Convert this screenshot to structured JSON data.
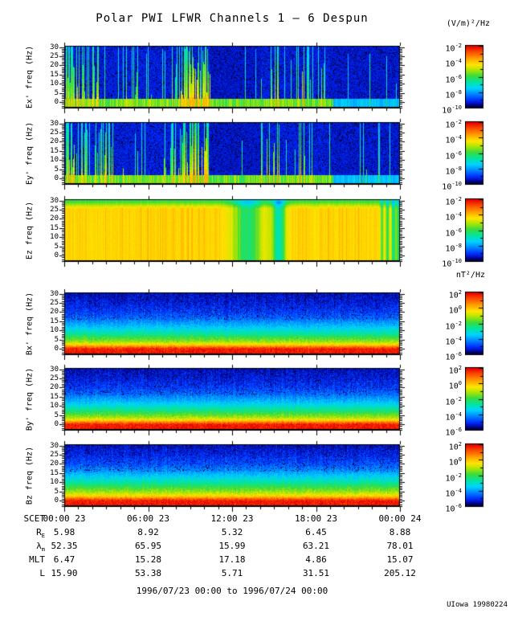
{
  "header": {
    "title": "Polar PWI LFWR Channels 1 — 6 Despun",
    "e_units": "(V/m)²/Hz",
    "b_units": "nT²/Hz"
  },
  "footer": {
    "date_range": "1996/07/23 00:00 to 1996/07/24 00:00",
    "credit": "UIowa 19980224"
  },
  "chart_data": {
    "type": "heatmap",
    "title": "Polar PWI LFWR Channels 1 — 6 Despun",
    "x_axis": {
      "label": "SCET",
      "tick_labels": [
        "00:00 23",
        "06:00 23",
        "12:00 23",
        "18:00 23",
        "00:00 24"
      ],
      "range_hours": [
        0,
        24
      ],
      "minor_tick_hours": 1
    },
    "y_axis": {
      "unit": "Hz",
      "tick_values": [
        0,
        5,
        10,
        15,
        20,
        25,
        30
      ],
      "range": [
        -3,
        33
      ]
    },
    "colormap_stops": [
      [
        0.0,
        0,
        0,
        10
      ],
      [
        0.04,
        0,
        0,
        120
      ],
      [
        0.12,
        0,
        40,
        255
      ],
      [
        0.22,
        0,
        130,
        255
      ],
      [
        0.32,
        0,
        210,
        255
      ],
      [
        0.42,
        0,
        230,
        160
      ],
      [
        0.52,
        60,
        220,
        60
      ],
      [
        0.62,
        180,
        230,
        0
      ],
      [
        0.7,
        255,
        230,
        0
      ],
      [
        0.8,
        255,
        160,
        0
      ],
      [
        0.9,
        255,
        80,
        0
      ],
      [
        1.0,
        230,
        0,
        0
      ]
    ],
    "colorbars": {
      "E": {
        "units": "(V/m)²/Hz",
        "labeled_exponents": [
          -2,
          -4,
          -6,
          -8,
          -10
        ],
        "decade_range": [
          -2,
          -10
        ]
      },
      "B": {
        "units": "nT²/Hz",
        "labeled_exponents": [
          2,
          0,
          -2,
          -4,
          -6
        ],
        "decade_range": [
          2,
          -6
        ]
      }
    },
    "panels": [
      {
        "name": "ex",
        "label": "Ex' freq (Hz)",
        "group": "E",
        "style": "streaks",
        "seed": 7,
        "band_until": 0.8,
        "regions": [
          [
            0.0,
            0.03,
            0.85,
            0.62
          ],
          [
            0.03,
            0.125,
            0.45,
            0.58
          ],
          [
            0.125,
            0.31,
            0.22,
            0.55
          ],
          [
            0.31,
            0.345,
            0.4,
            0.58
          ],
          [
            0.345,
            0.435,
            0.78,
            0.68
          ],
          [
            0.435,
            0.585,
            0.035,
            0.45,
            0.085
          ],
          [
            0.585,
            0.655,
            0.3,
            0.64
          ],
          [
            0.655,
            0.69,
            0.12,
            0.55
          ],
          [
            0.69,
            0.715,
            0.55,
            0.66
          ],
          [
            0.715,
            0.745,
            0.25,
            0.55
          ],
          [
            0.745,
            0.79,
            0.08,
            0.52
          ],
          [
            0.79,
            1.0,
            0.03,
            0.45,
            0.09
          ]
        ]
      },
      {
        "name": "ey",
        "label": "Ey' freq (Hz)",
        "group": "E",
        "style": "streaks",
        "seed": 131,
        "band_until": 0.8,
        "regions": [
          [
            0.0,
            0.03,
            0.85,
            0.62
          ],
          [
            0.03,
            0.125,
            0.45,
            0.58
          ],
          [
            0.125,
            0.31,
            0.22,
            0.55
          ],
          [
            0.31,
            0.345,
            0.4,
            0.58
          ],
          [
            0.345,
            0.435,
            0.78,
            0.68
          ],
          [
            0.435,
            0.585,
            0.035,
            0.45,
            0.085
          ],
          [
            0.585,
            0.655,
            0.3,
            0.64
          ],
          [
            0.655,
            0.69,
            0.12,
            0.55
          ],
          [
            0.69,
            0.715,
            0.55,
            0.66
          ],
          [
            0.715,
            0.745,
            0.25,
            0.55
          ],
          [
            0.745,
            0.79,
            0.08,
            0.52
          ],
          [
            0.79,
            1.0,
            0.03,
            0.45,
            0.09
          ]
        ]
      },
      {
        "name": "ez",
        "label": "Ez freq (Hz)",
        "group": "E",
        "style": "saturated",
        "seed": 3,
        "body": 0.72,
        "top": 0.52,
        "dropouts": [
          [
            0.545,
            0.03,
            0.26
          ],
          [
            0.638,
            0.014,
            0.34
          ],
          [
            0.945,
            0.0035,
            0.22
          ],
          [
            0.962,
            0.0035,
            0.26
          ],
          [
            0.979,
            0.004,
            0.3
          ],
          [
            0.995,
            0.006,
            0.26
          ]
        ]
      },
      {
        "name": "bx",
        "label": "Bx' freq (Hz)",
        "group": "B",
        "style": "banded",
        "seed": 21,
        "profile": [
          [
            0,
            0.97
          ],
          [
            1,
            0.88
          ],
          [
            2,
            0.76
          ],
          [
            3,
            0.67
          ],
          [
            4,
            0.6
          ],
          [
            6,
            0.52
          ],
          [
            8,
            0.44
          ],
          [
            10,
            0.37
          ],
          [
            13,
            0.28
          ],
          [
            16,
            0.21
          ],
          [
            20,
            0.15
          ],
          [
            25,
            0.11
          ],
          [
            31,
            0.08
          ]
        ]
      },
      {
        "name": "by",
        "label": "By' freq (Hz)",
        "group": "B",
        "style": "banded",
        "seed": 33,
        "profile": [
          [
            0,
            0.97
          ],
          [
            1,
            0.88
          ],
          [
            2,
            0.76
          ],
          [
            3,
            0.67
          ],
          [
            4,
            0.6
          ],
          [
            6,
            0.52
          ],
          [
            8,
            0.44
          ],
          [
            10,
            0.37
          ],
          [
            13,
            0.28
          ],
          [
            16,
            0.21
          ],
          [
            20,
            0.15
          ],
          [
            25,
            0.11
          ],
          [
            31,
            0.08
          ]
        ]
      },
      {
        "name": "bz",
        "label": "Bz freq (Hz)",
        "group": "B",
        "style": "banded",
        "seed": 45,
        "profile": [
          [
            0,
            0.97
          ],
          [
            1,
            0.89
          ],
          [
            2,
            0.78
          ],
          [
            3,
            0.7
          ],
          [
            4,
            0.64
          ],
          [
            6,
            0.56
          ],
          [
            8,
            0.49
          ],
          [
            10,
            0.42
          ],
          [
            13,
            0.33
          ],
          [
            16,
            0.25
          ],
          [
            20,
            0.17
          ],
          [
            25,
            0.12
          ],
          [
            31,
            0.08
          ]
        ]
      }
    ],
    "ephemeris": {
      "rows": [
        {
          "label": "SCET",
          "sub": "",
          "values": [
            "00:00 23",
            "06:00 23",
            "12:00 23",
            "18:00 23",
            "00:00 24"
          ]
        },
        {
          "label": "R",
          "sub": "E",
          "values": [
            "5.98",
            "8.92",
            "5.32",
            "6.45",
            "8.88"
          ]
        },
        {
          "label": "λ",
          "sub": "m",
          "values": [
            "52.35",
            "65.95",
            "15.99",
            "63.21",
            "78.01"
          ]
        },
        {
          "label": "MLT",
          "sub": "",
          "values": [
            "6.47",
            "15.28",
            "17.18",
            "4.86",
            "15.07"
          ]
        },
        {
          "label": "L",
          "sub": "",
          "values": [
            "15.90",
            "53.38",
            "5.71",
            "31.51",
            "205.12"
          ]
        }
      ]
    }
  }
}
